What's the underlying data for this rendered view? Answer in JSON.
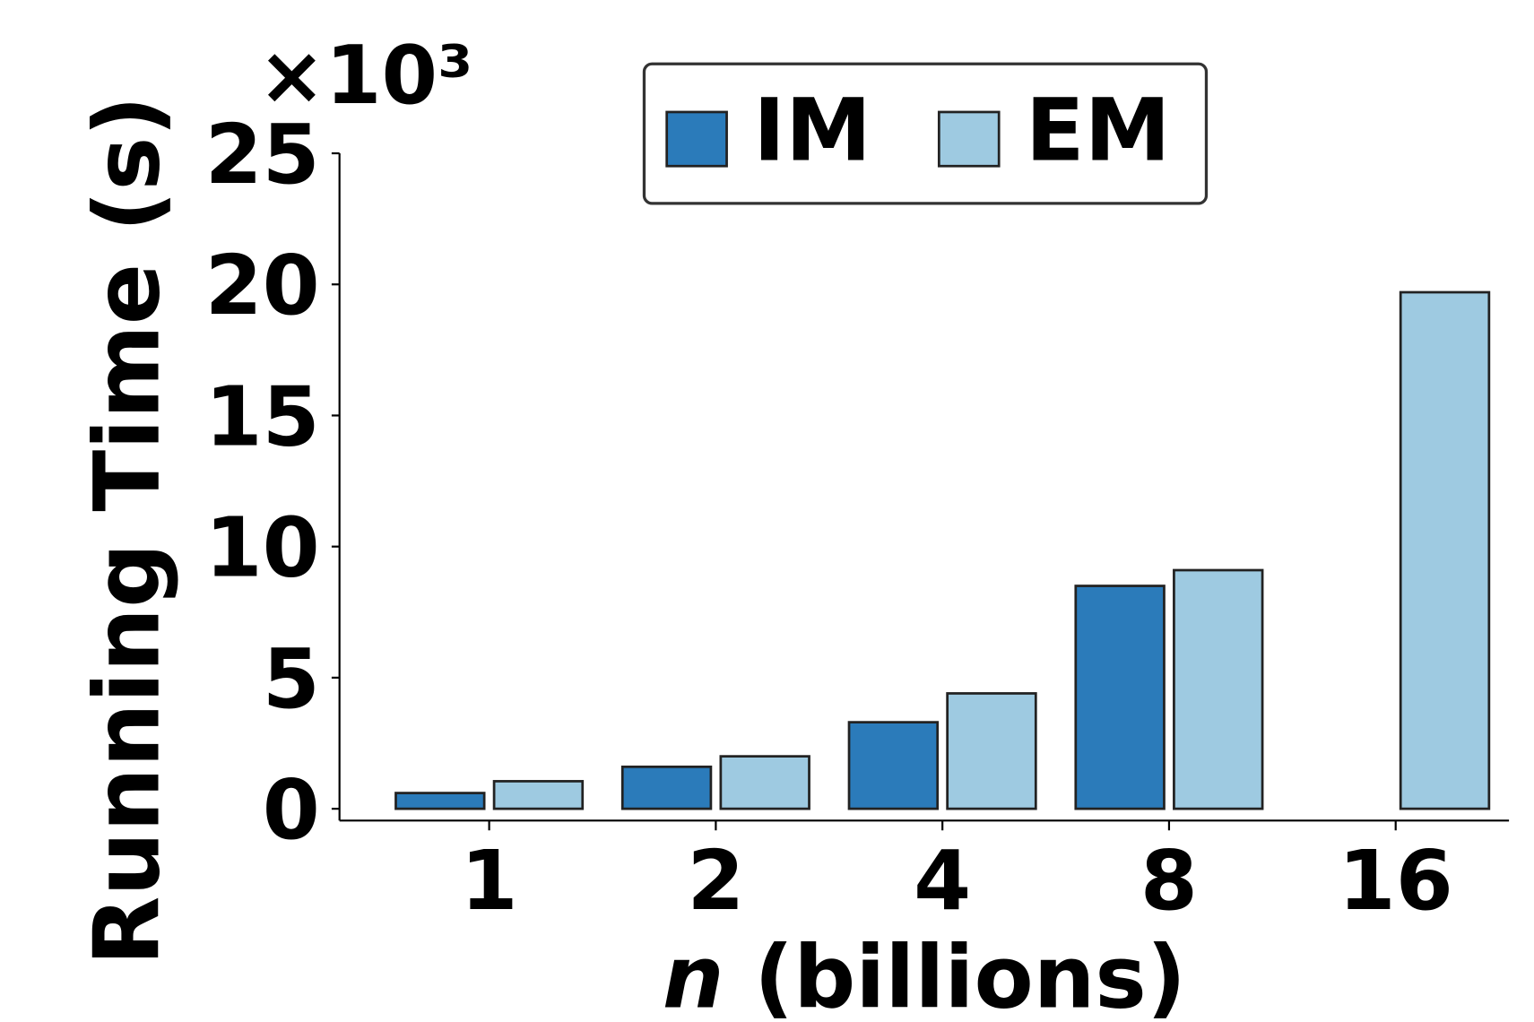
{
  "chart_data": {
    "type": "bar",
    "y_label": "Running Time (s)",
    "y_offset_label": "×10³",
    "x_label": {
      "variable": "n",
      "text": "(billions)"
    },
    "categories": [
      "1",
      "2",
      "4",
      "8",
      "16"
    ],
    "series": [
      {
        "name": "IM",
        "color": "#2b7bba",
        "values": [
          0.6,
          1.6,
          3.3,
          8.5,
          null
        ]
      },
      {
        "name": "EM",
        "color": "#9ecae1",
        "values": [
          1.05,
          2.0,
          4.4,
          9.1,
          19.7
        ]
      }
    ],
    "ylim": [
      0,
      25
    ],
    "yticks": [
      0,
      5,
      10,
      15,
      20,
      25
    ],
    "grid": false,
    "legend": "upper center"
  }
}
